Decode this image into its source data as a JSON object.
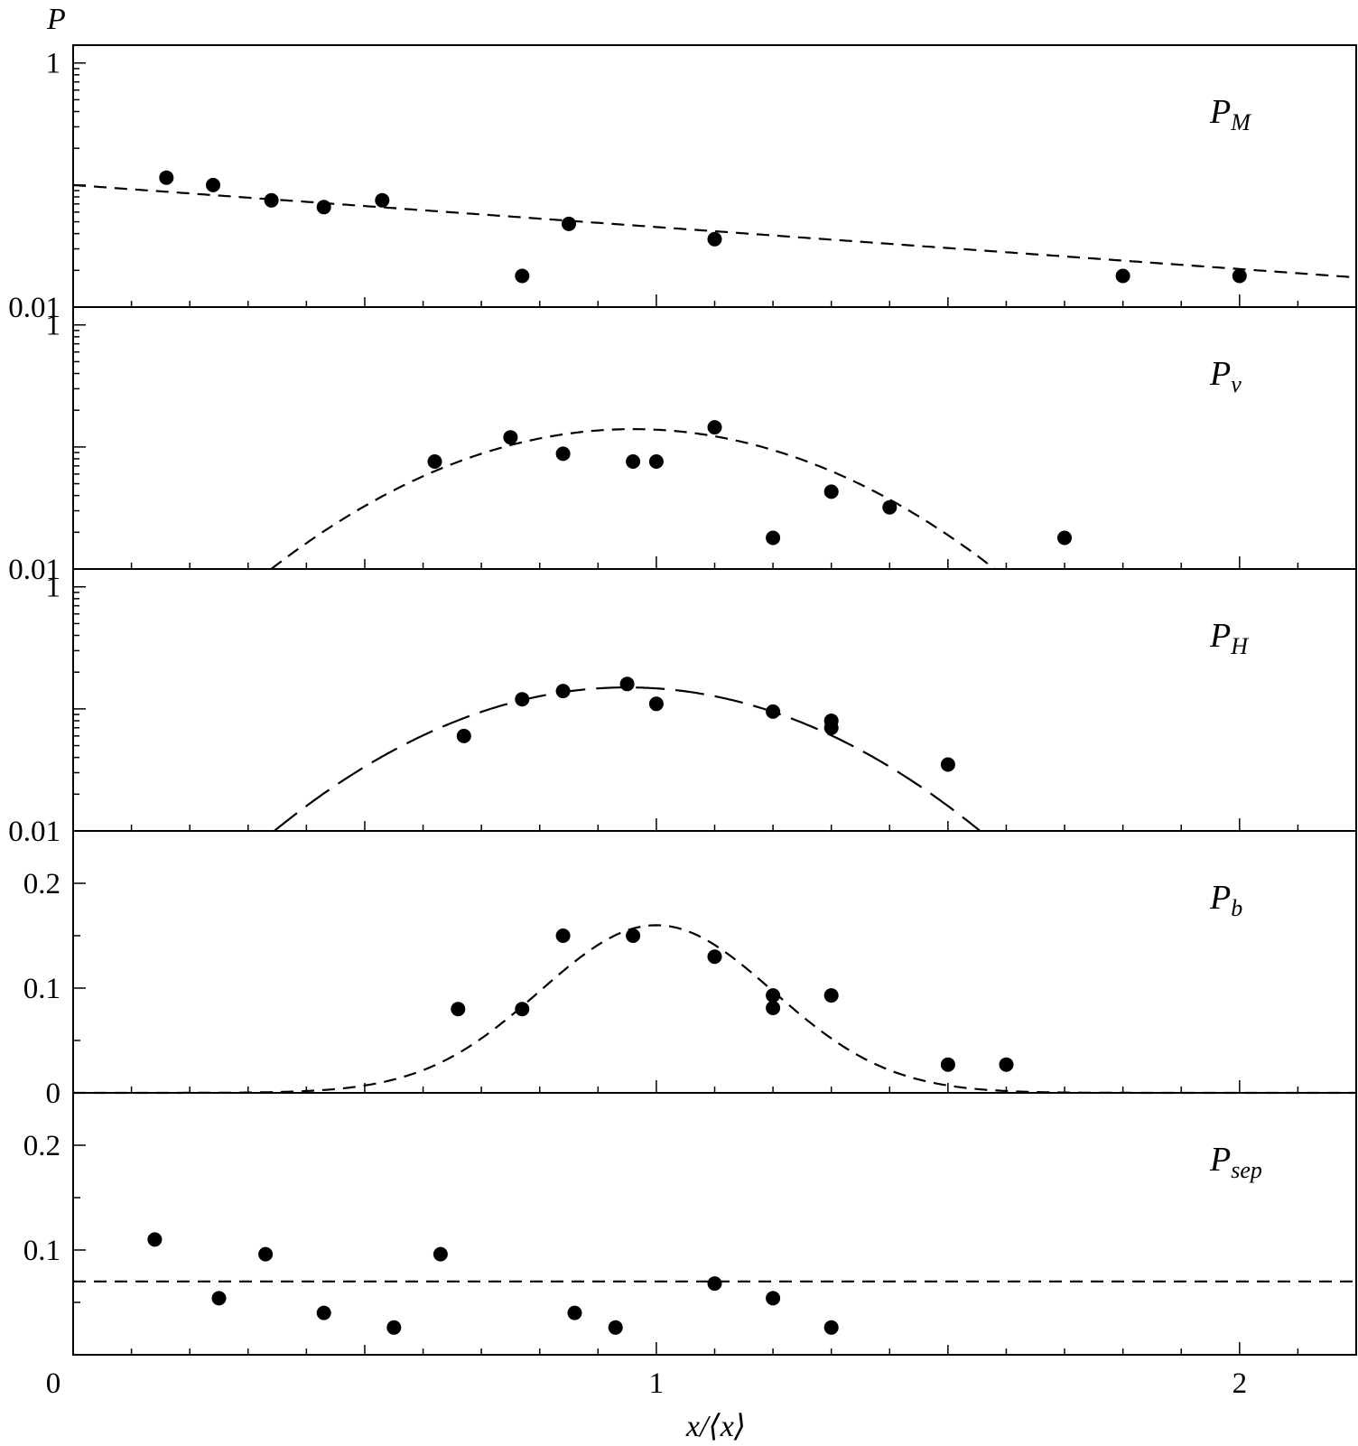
{
  "chart_data": {
    "type": "scatter",
    "y_axis_title": "P",
    "x_axis_title": "x/⟨x⟩",
    "x_axis": {
      "range": [
        0,
        2.2
      ],
      "tick_labels": [
        "0",
        "1",
        "2"
      ],
      "tick_values": [
        0,
        1,
        2
      ],
      "minor_step": 0.1
    },
    "panels": [
      {
        "label_main": "P",
        "label_sub": "M",
        "y_scale": "log",
        "ylim": [
          0.01,
          1.4
        ],
        "y_tick_labels": [
          {
            "value": 1,
            "text": "1"
          },
          {
            "value": 0.01,
            "text": "0.01"
          }
        ],
        "fit": {
          "kind": "exponential",
          "dash": "short",
          "points": [
            [
              0,
              0.1
            ],
            [
              2.2,
              0.0175
            ]
          ]
        },
        "points": [
          [
            0.16,
            0.115
          ],
          [
            0.24,
            0.1
          ],
          [
            0.34,
            0.075
          ],
          [
            0.43,
            0.066
          ],
          [
            0.53,
            0.075
          ],
          [
            0.77,
            0.018
          ],
          [
            0.85,
            0.048
          ],
          [
            1.1,
            0.036
          ],
          [
            1.8,
            0.018
          ],
          [
            2.0,
            0.018
          ]
        ]
      },
      {
        "label_main": "P",
        "label_sub": "v",
        "y_scale": "log",
        "ylim": [
          0.01,
          1.4
        ],
        "y_tick_labels": [
          {
            "value": 1,
            "text": "1"
          },
          {
            "value": 0.01,
            "text": "0.01"
          }
        ],
        "fit": {
          "kind": "gaussian",
          "dash": "short",
          "peak": 0.14,
          "mu": 0.96,
          "sigma": 0.27
        },
        "points": [
          [
            0.62,
            0.076
          ],
          [
            0.75,
            0.12
          ],
          [
            0.84,
            0.088
          ],
          [
            0.96,
            0.076
          ],
          [
            1.0,
            0.076
          ],
          [
            1.1,
            0.145
          ],
          [
            1.2,
            0.018
          ],
          [
            1.3,
            0.043
          ],
          [
            1.4,
            0.032
          ],
          [
            1.7,
            0.018
          ]
        ]
      },
      {
        "label_main": "P",
        "label_sub": "H",
        "y_scale": "log",
        "ylim": [
          0.01,
          1.4
        ],
        "y_tick_labels": [
          {
            "value": 1,
            "text": "1"
          },
          {
            "value": 0.01,
            "text": "0.01"
          }
        ],
        "fit": {
          "kind": "gaussian",
          "dash": "long",
          "peak": 0.15,
          "mu": 0.95,
          "sigma": 0.26
        },
        "points": [
          [
            0.67,
            0.06
          ],
          [
            0.77,
            0.12
          ],
          [
            0.84,
            0.14
          ],
          [
            0.95,
            0.16
          ],
          [
            1.0,
            0.11
          ],
          [
            1.2,
            0.095
          ],
          [
            1.3,
            0.08
          ],
          [
            1.3,
            0.07
          ],
          [
            1.5,
            0.035
          ]
        ]
      },
      {
        "label_main": "P",
        "label_sub": "b",
        "y_scale": "linear",
        "ylim": [
          0,
          0.25
        ],
        "y_tick_labels": [
          {
            "value": 0.2,
            "text": "0.2"
          },
          {
            "value": 0.1,
            "text": "0.1"
          },
          {
            "value": 0,
            "text": "0"
          }
        ],
        "fit": {
          "kind": "gaussian",
          "dash": "short",
          "peak": 0.16,
          "mu": 1.0,
          "sigma": 0.2
        },
        "points": [
          [
            0.66,
            0.08
          ],
          [
            0.77,
            0.08
          ],
          [
            0.84,
            0.15
          ],
          [
            0.96,
            0.15
          ],
          [
            1.1,
            0.13
          ],
          [
            1.2,
            0.093
          ],
          [
            1.2,
            0.081
          ],
          [
            1.3,
            0.093
          ],
          [
            1.5,
            0.027
          ],
          [
            1.6,
            0.027
          ]
        ]
      },
      {
        "label_main": "P",
        "label_sub": "sep",
        "y_scale": "linear",
        "ylim": [
          0,
          0.25
        ],
        "y_tick_labels": [
          {
            "value": 0.2,
            "text": "0.2"
          },
          {
            "value": 0.1,
            "text": "0.1"
          }
        ],
        "fit": {
          "kind": "constant",
          "dash": "short",
          "value": 0.07
        },
        "points": [
          [
            0.14,
            0.11
          ],
          [
            0.25,
            0.054
          ],
          [
            0.33,
            0.096
          ],
          [
            0.43,
            0.04
          ],
          [
            0.55,
            0.026
          ],
          [
            0.63,
            0.096
          ],
          [
            0.86,
            0.04
          ],
          [
            0.93,
            0.026
          ],
          [
            1.1,
            0.068
          ],
          [
            1.2,
            0.054
          ],
          [
            1.3,
            0.026
          ]
        ]
      }
    ]
  }
}
